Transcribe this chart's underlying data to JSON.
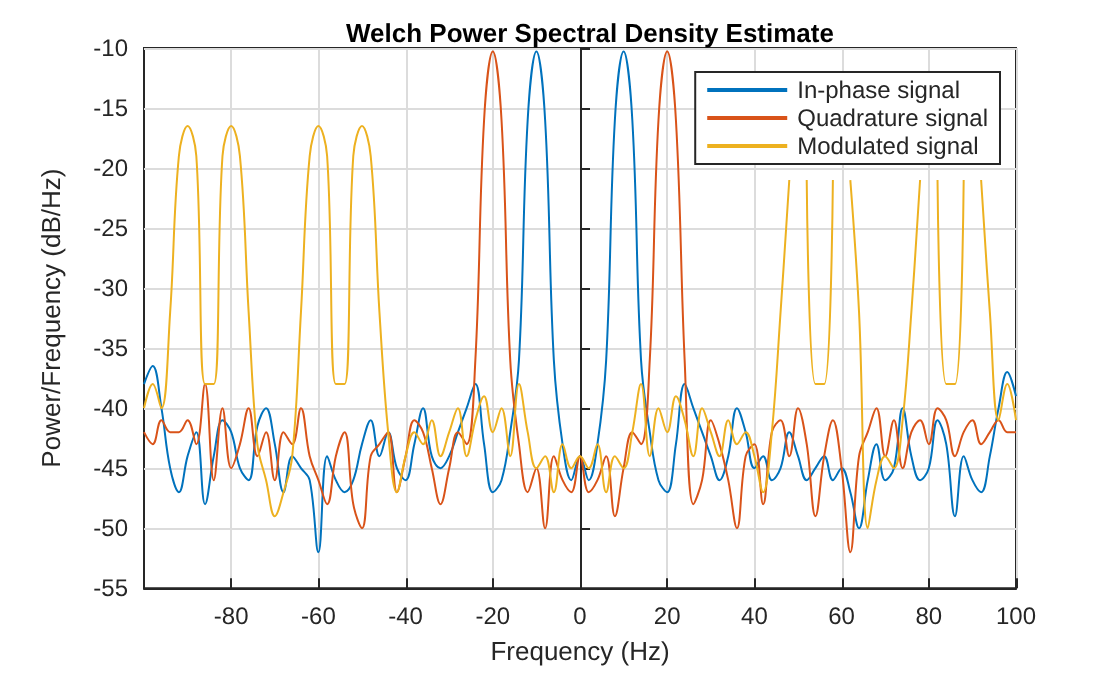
{
  "chart_data": {
    "type": "line",
    "title": "Welch Power Spectral Density Estimate",
    "xlabel": "Frequency (Hz)",
    "ylabel": "Power/Frequency (dB/Hz)",
    "x": [
      -100,
      -98,
      -96,
      -94,
      -92,
      -90,
      -88,
      -86,
      -84,
      -82,
      -80,
      -78,
      -76,
      -74,
      -72,
      -70,
      -68,
      -66,
      -64,
      -62,
      -60,
      -58,
      -56,
      -54,
      -52,
      -50,
      -48,
      -46,
      -44,
      -42,
      -40,
      -38,
      -36,
      -34,
      -32,
      -30,
      -28,
      -26,
      -24,
      -22,
      -20,
      -18,
      -16,
      -14,
      -12,
      -10,
      -8,
      -6,
      -4,
      -2,
      0,
      2,
      4,
      6,
      8,
      10,
      12,
      14,
      16,
      18,
      20,
      22,
      24,
      26,
      28,
      30,
      32,
      34,
      36,
      38,
      40,
      42,
      44,
      46,
      48,
      50,
      52,
      54,
      56,
      58,
      60,
      62,
      64,
      66,
      68,
      70,
      72,
      74,
      76,
      78,
      80,
      82,
      84,
      86,
      88,
      90,
      92,
      94,
      96,
      98,
      100
    ],
    "series": [
      {
        "name": "In-phase signal",
        "color": "#0072bd",
        "values": [
          -38,
          -36.5,
          -40,
          -45,
          -47,
          -44,
          -42,
          -48,
          -44,
          -41,
          -42,
          -45,
          -46,
          -41.5,
          -40,
          -43,
          -47,
          -44,
          -45,
          -46,
          -52,
          -44,
          -46,
          -47,
          -46,
          -43,
          -41,
          -44,
          -42,
          -45,
          -46,
          -43,
          -40,
          -44,
          -45,
          -44,
          -42,
          -40,
          -38,
          -43,
          -47,
          -46,
          -42,
          -36,
          -16,
          -10.3,
          -16,
          -36,
          -43,
          -46,
          -44,
          -46,
          -43,
          -36,
          -16,
          -10.3,
          -16,
          -36,
          -42,
          -46,
          -47,
          -43,
          -38,
          -40,
          -42,
          -44,
          -46,
          -44,
          -40,
          -42,
          -45,
          -44,
          -46,
          -45,
          -42,
          -44,
          -46,
          -45,
          -44,
          -46,
          -45,
          -47,
          -50,
          -46,
          -43,
          -46,
          -45,
          -40,
          -44,
          -46,
          -45,
          -41,
          -43,
          -49,
          -44,
          -46,
          -47,
          -44,
          -40,
          -37,
          -39
        ]
      },
      {
        "name": "Quadrature signal",
        "color": "#d95319",
        "values": [
          -42,
          -43,
          -41,
          -42,
          -42,
          -41,
          -43,
          -38,
          -46,
          -40,
          -45,
          -43,
          -40,
          -44,
          -42,
          -46,
          -42,
          -43,
          -40,
          -44,
          -46,
          -48,
          -44,
          -42,
          -48,
          -50,
          -44,
          -43,
          -42,
          -47,
          -44,
          -41,
          -42,
          -45,
          -48,
          -45,
          -42,
          -43,
          -36,
          -16,
          -10.3,
          -16,
          -36,
          -43,
          -47,
          -45,
          -50,
          -44,
          -46,
          -47,
          -44,
          -47,
          -46,
          -44,
          -49,
          -45,
          -42,
          -43,
          -36,
          -16,
          -10.3,
          -16,
          -36,
          -48,
          -46,
          -41,
          -43,
          -46,
          -50,
          -44,
          -43,
          -48,
          -42,
          -41,
          -44,
          -40,
          -43,
          -49,
          -44,
          -41,
          -45,
          -52,
          -44,
          -42,
          -40,
          -44,
          -41,
          -45,
          -42,
          -41,
          -43,
          -40,
          -41,
          -44,
          -42,
          -41,
          -43,
          -42,
          -41,
          -42,
          -42
        ]
      },
      {
        "name": "Modulated signal",
        "color": "#edb120",
        "values": [
          -40,
          -38,
          -40,
          -32,
          -19,
          -16.5,
          -19,
          -38,
          -38,
          -19,
          -16.5,
          -19,
          -32,
          -43,
          -46,
          -49,
          -47,
          -44,
          -32,
          -19,
          -16.5,
          -19,
          -38,
          -38,
          -19,
          -16.5,
          -19,
          -32,
          -42,
          -47,
          -44,
          -42,
          -43,
          -41,
          -44,
          -42,
          -40,
          -44,
          -41,
          -39,
          -42,
          -40,
          -44,
          -38,
          -42,
          -45,
          -44,
          -47,
          -43,
          -45,
          -44,
          -45,
          -43,
          -47,
          -44,
          -45,
          -42,
          -38,
          -44,
          -40,
          -42,
          -39,
          -41,
          -44,
          -40,
          -42,
          -44,
          -41,
          -43,
          -42,
          -44,
          -47,
          -42,
          -32,
          -21,
          null,
          -21,
          -38,
          -38,
          -21,
          null,
          -21,
          -32,
          -50,
          -46,
          -44,
          -45,
          -41,
          -32,
          -21,
          null,
          -21,
          -38,
          -38,
          -21,
          null,
          -21,
          -32,
          -41,
          -38,
          -41
        ]
      }
    ],
    "xlim": [
      -100,
      100
    ],
    "xticks": [
      -80,
      -60,
      -40,
      -20,
      0,
      20,
      40,
      60,
      80,
      100
    ],
    "ylim": [
      -55,
      -10
    ],
    "yticks": [
      -55,
      -50,
      -45,
      -40,
      -35,
      -30,
      -25,
      -20,
      -15,
      -10
    ],
    "grid": true,
    "legend": "top right"
  }
}
